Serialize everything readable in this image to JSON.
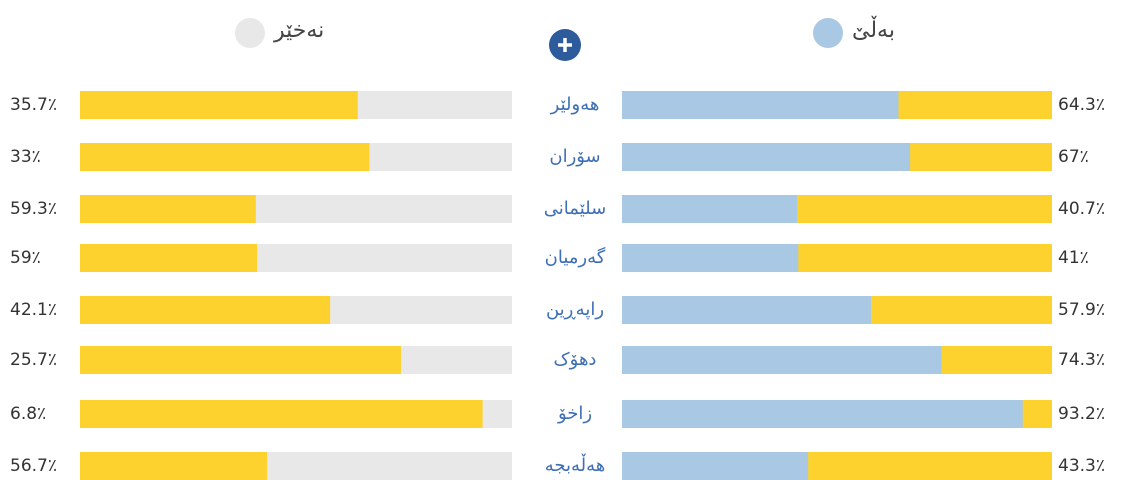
{
  "chart_data": {
    "type": "bar",
    "categories": [
      "هەولێر",
      "سۆران",
      "سلێمانی",
      "گەرمیان",
      "راپەڕین",
      "دهۆک",
      "زاخۆ",
      "هەڵەبجە"
    ],
    "series": [
      {
        "name": "بەڵێ",
        "color": "#a9c8e3",
        "values": [
          64.3,
          67,
          40.7,
          41,
          57.9,
          74.3,
          93.2,
          43.3
        ],
        "value_labels": [
          "64.3٪",
          "67٪",
          "40.7٪",
          "41٪",
          "57.9٪",
          "74.3٪",
          "93.2٪",
          "43.3٪"
        ]
      },
      {
        "name": "نەخێر",
        "color": "#e8e8e8",
        "values": [
          35.7,
          33,
          59.3,
          59,
          42.1,
          25.7,
          6.8,
          56.7
        ],
        "value_labels": [
          "35.7٪",
          "33٪",
          "59.3٪",
          "59٪",
          "42.1٪",
          "25.7٪",
          "6.8٪",
          "56.7٪"
        ]
      }
    ],
    "xlim": [
      0,
      100
    ]
  }
}
